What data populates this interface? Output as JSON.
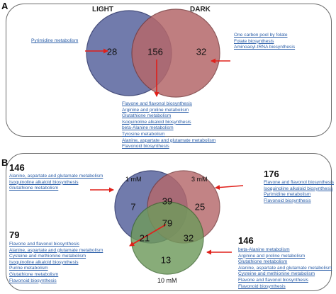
{
  "panel_a": {
    "letter": "A",
    "set_left": "LIGHT",
    "set_right": "DARK",
    "counts": {
      "left_only": "28",
      "both": "156",
      "right_only": "32"
    },
    "left_pathways": [
      "Pyrimidine metabolism"
    ],
    "right_pathways": [
      "One carbon pool by folate",
      "Folate biosynthesis",
      "Aminoacyl-tRNA biosynthesis"
    ],
    "shared_pathways": [
      "Flavone and flavonol biosynthesis",
      "Arginine and proline metabolism",
      "Glutathione metabolism",
      "Isoquinoline alkaloid biosynthesis",
      "beta-Alanine metabolism",
      "Tyrosine metabolism",
      "Alanine, aspartate and glutamate metabolism",
      "Flavonoid biosynthesis"
    ],
    "colors": {
      "left": "#6a74a8",
      "right": "#b5686b"
    }
  },
  "panel_b": {
    "letter": "B",
    "sets": {
      "one": "1 mM",
      "three": "3 mM",
      "ten": "10 mM"
    },
    "counts": {
      "one_only": "7",
      "one_three": "39",
      "three_only": "25",
      "all": "79",
      "one_ten": "21",
      "three_ten": "32",
      "ten_only": "13"
    },
    "group_146_top": {
      "count": "146",
      "items": [
        "Alanine, aspartate and glutamate metabolism",
        "Isoquinoline alkaloid biosynthesis",
        "Glutathione metabolism"
      ]
    },
    "group_176": {
      "count": "176",
      "items": [
        "Flavone and flavonol biosynthesis",
        "Isoquinoline alkaloid biosynthesis",
        "Pyrimidine metabolism",
        "Flavonoid biosynthesis"
      ]
    },
    "group_79": {
      "count": "79",
      "items": [
        "Flavone and flavonol biosynthesis",
        "Alanine, aspartate and glutamate metabolism",
        "Cysteine and methionine metabolism",
        "Isoquinoline alkaloid biosynthesis",
        "Purine metabolism",
        "Glutathione metabolism",
        "Flavonoid biosynthesis"
      ]
    },
    "group_146_bottom": {
      "count": "146",
      "items": [
        "beta-Alanine metabolism",
        "Arginine and proline metabolism",
        "Glutathione metabolism",
        "Alanine, aspartate and glutamate metabolism",
        "Cysteine and methionine metabolism",
        "Flavone and flavonol biosynthesis",
        "Flavonoid biosynthesis"
      ]
    },
    "colors": {
      "one": "#6a74a8",
      "three": "#b5686b",
      "ten": "#6f9a5c"
    }
  },
  "arrow_color": "#e0201a"
}
